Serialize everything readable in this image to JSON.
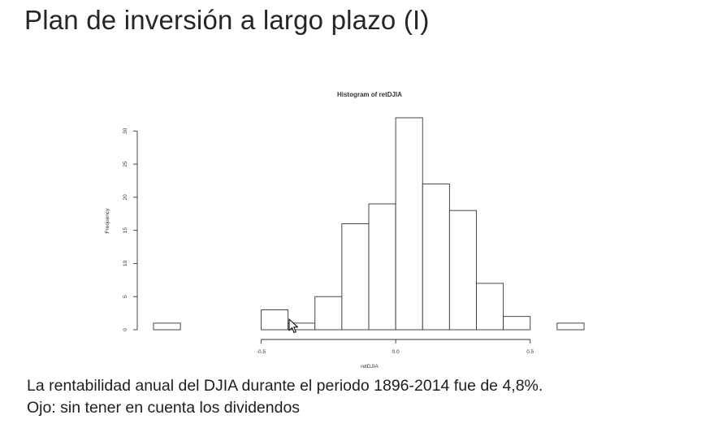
{
  "slide": {
    "title": "Plan de inversión a largo plazo (I)",
    "caption_line1": "La rentabilidad anual del DJIA durante el periodo 1896-2014 fue de 4,8%.",
    "caption_line2": "Ojo: sin tener en cuenta los dividendos"
  },
  "chart_data": {
    "type": "histogram",
    "title": "Histogram of retDJIA",
    "xlabel": "retDJIA",
    "ylabel": "Frequency",
    "bin_width": 0.1,
    "bins": [
      {
        "x0": -0.9,
        "x1": -0.8,
        "count": 1
      },
      {
        "x0": -0.8,
        "x1": -0.7,
        "count": 0
      },
      {
        "x0": -0.7,
        "x1": -0.6,
        "count": 0
      },
      {
        "x0": -0.6,
        "x1": -0.5,
        "count": 0
      },
      {
        "x0": -0.5,
        "x1": -0.4,
        "count": 3
      },
      {
        "x0": -0.4,
        "x1": -0.3,
        "count": 1
      },
      {
        "x0": -0.3,
        "x1": -0.2,
        "count": 5
      },
      {
        "x0": -0.2,
        "x1": -0.1,
        "count": 16
      },
      {
        "x0": -0.1,
        "x1": 0.0,
        "count": 19
      },
      {
        "x0": 0.0,
        "x1": 0.1,
        "count": 32
      },
      {
        "x0": 0.1,
        "x1": 0.2,
        "count": 22
      },
      {
        "x0": 0.2,
        "x1": 0.3,
        "count": 18
      },
      {
        "x0": 0.3,
        "x1": 0.4,
        "count": 7
      },
      {
        "x0": 0.4,
        "x1": 0.5,
        "count": 2
      },
      {
        "x0": 0.5,
        "x1": 0.6,
        "count": 0
      },
      {
        "x0": 0.6,
        "x1": 0.7,
        "count": 1
      }
    ],
    "xticks": [
      -0.5,
      0.0,
      0.5
    ],
    "xtick_labels": [
      "-0.5",
      "0.0",
      "0.5"
    ],
    "yticks": [
      0,
      5,
      10,
      15,
      20,
      25,
      30
    ],
    "ytick_labels": [
      "0",
      "5",
      "10",
      "15",
      "20",
      "25",
      "30"
    ],
    "xlim": [
      -0.9,
      0.7
    ],
    "ylim": [
      0,
      32
    ],
    "grid": false,
    "legend": "none",
    "bar_fill": "#ffffff",
    "bar_stroke": "#333333"
  },
  "icons": {
    "cursor": "mouse-pointer-icon"
  }
}
